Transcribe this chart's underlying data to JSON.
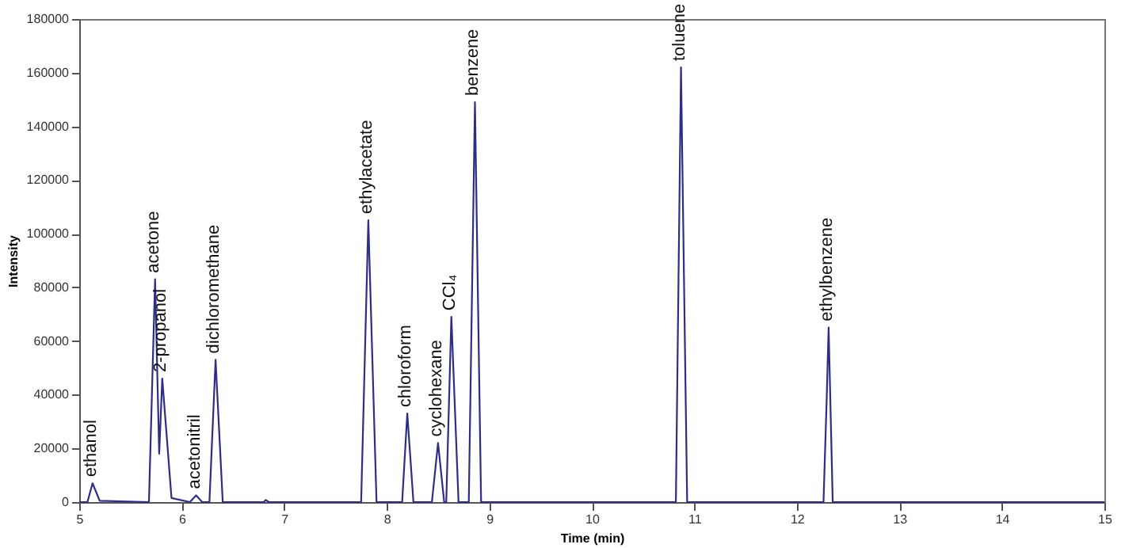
{
  "chart_data": {
    "type": "line",
    "xlabel": "Time (min)",
    "ylabel": "Intensity",
    "x": [
      5.0,
      5.08,
      5.13,
      5.2,
      5.68,
      5.74,
      5.78,
      5.81,
      5.9,
      6.08,
      6.14,
      6.2,
      6.27,
      6.33,
      6.4,
      6.8,
      6.82,
      6.85,
      7.75,
      7.82,
      7.9,
      8.15,
      8.2,
      8.26,
      8.44,
      8.5,
      8.56,
      8.58,
      8.63,
      8.7,
      8.8,
      8.86,
      8.92,
      10.82,
      10.87,
      10.93,
      12.26,
      12.29,
      12.31,
      12.35,
      15.0
    ],
    "series": [
      {
        "color": "#2e2e86",
        "values": [
          0,
          0,
          7000,
          500,
          0,
          83000,
          18000,
          46000,
          1500,
          0,
          2500,
          0,
          0,
          53000,
          0,
          0,
          800,
          0,
          0,
          105000,
          0,
          0,
          33000,
          0,
          0,
          22000,
          0,
          0,
          69000,
          0,
          0,
          149000,
          0,
          0,
          162000,
          0,
          0,
          37000,
          65000,
          0,
          0
        ]
      }
    ],
    "xlim": [
      5,
      15
    ],
    "xticks": [
      5,
      6,
      7,
      8,
      9,
      10,
      11,
      12,
      13,
      14,
      15
    ],
    "ylim": [
      0,
      180000
    ],
    "yticks": [
      0,
      20000,
      40000,
      60000,
      80000,
      100000,
      120000,
      140000,
      160000,
      180000
    ],
    "grid": false,
    "marker": "none",
    "line_style": "solid",
    "annotations": [
      {
        "text": "ethanol",
        "x": 5.13,
        "y": 7000
      },
      {
        "text": "acetone",
        "x": 5.74,
        "y": 83000
      },
      {
        "text": "2-propanol",
        "x": 5.81,
        "y": 46000
      },
      {
        "text": "acetonitril",
        "x": 6.14,
        "y": 2500
      },
      {
        "text": "dichloromethane",
        "x": 6.33,
        "y": 53000
      },
      {
        "text": "ethylacetate",
        "x": 7.82,
        "y": 105000
      },
      {
        "text": "chloroform",
        "x": 8.2,
        "y": 33000
      },
      {
        "text": "cyclohexane",
        "x": 8.5,
        "y": 22000
      },
      {
        "text": "CCl₄",
        "x": 8.63,
        "y": 69000
      },
      {
        "text": "benzene",
        "x": 8.86,
        "y": 149000
      },
      {
        "text": "toluene",
        "x": 10.87,
        "y": 162000
      },
      {
        "text": "ethylbenzene",
        "x": 12.31,
        "y": 65000
      }
    ]
  }
}
